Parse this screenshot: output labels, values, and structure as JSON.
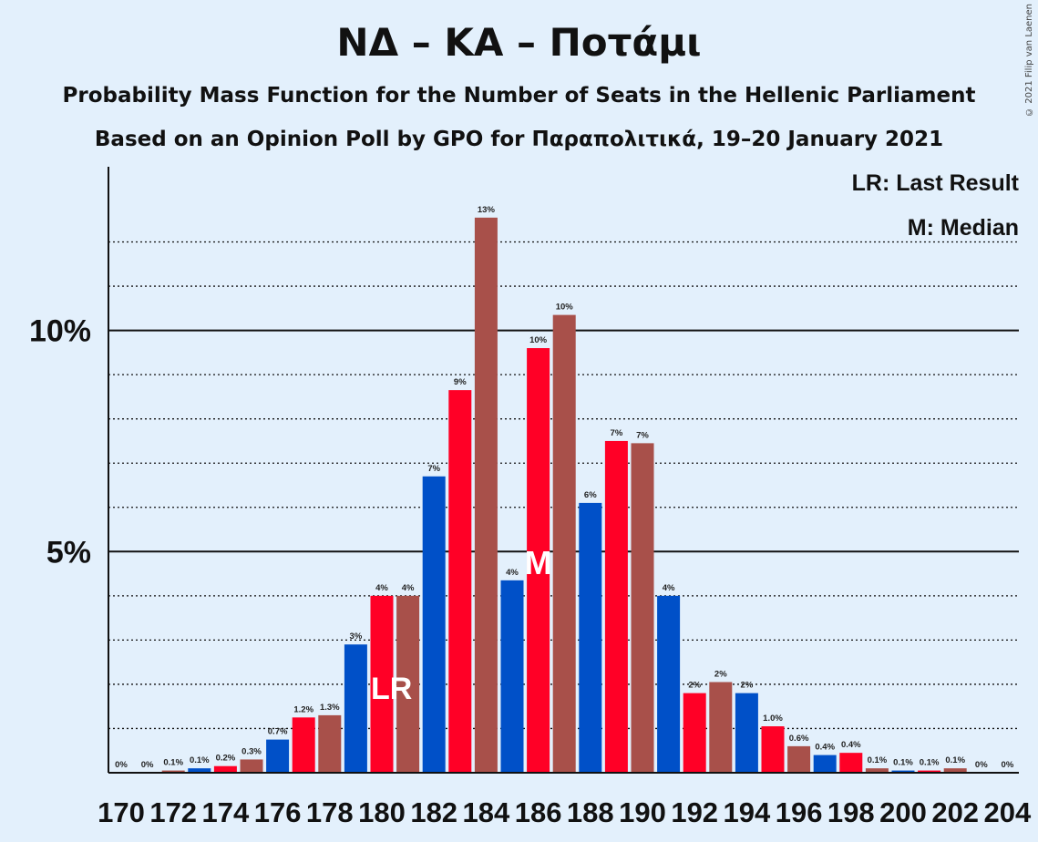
{
  "title": "ΝΔ – ΚΑ – Ποτάμι",
  "subtitle_1": "Probability Mass Function for the Number of Seats in the Hellenic Parliament",
  "subtitle_2": "Based on an Opinion Poll by GPO for Παραπολιτικά, 19–20 January 2021",
  "copyright": "© 2021 Filip van Laenen",
  "legend": {
    "last_result": "LR: Last Result",
    "median": "M: Median"
  },
  "colors": {
    "blue": "#0050c8",
    "red": "#ff0026",
    "brown": "#a8504a",
    "background": "#e3f0fc"
  },
  "chart_data": {
    "type": "bar",
    "x": [
      170,
      171,
      172,
      173,
      174,
      175,
      176,
      177,
      178,
      179,
      180,
      181,
      182,
      183,
      184,
      185,
      186,
      187,
      188,
      189,
      190,
      191,
      192,
      193,
      194,
      195,
      196,
      197,
      198,
      199,
      200,
      201,
      202,
      203,
      204
    ],
    "values": [
      0,
      0,
      0.05,
      0.1,
      0.15,
      0.3,
      0.75,
      1.25,
      1.3,
      2.9,
      4.0,
      4.0,
      6.7,
      8.65,
      12.55,
      4.35,
      9.6,
      10.35,
      6.1,
      7.5,
      7.45,
      4.0,
      1.8,
      2.05,
      1.8,
      1.05,
      0.6,
      0.4,
      0.45,
      0.1,
      0.05,
      0.05,
      0.1,
      0,
      0
    ],
    "labels": [
      "0%",
      "0%",
      "0.1%",
      "0.1%",
      "0.2%",
      "0.3%",
      "0.7%",
      "1.2%",
      "1.3%",
      "3%",
      "4%",
      "4%",
      "7%",
      "9%",
      "13%",
      "4%",
      "10%",
      "10%",
      "6%",
      "7%",
      "7%",
      "4%",
      "2%",
      "2%",
      "2%",
      "1.0%",
      "0.6%",
      "0.4%",
      "0.4%",
      "0.1%",
      "0.1%",
      "0.1%",
      "0.1%",
      "0%",
      "0%"
    ],
    "colors": [
      "blue",
      "red",
      "brown",
      "blue",
      "red",
      "brown",
      "blue",
      "red",
      "brown",
      "blue",
      "red",
      "brown",
      "blue",
      "red",
      "brown",
      "blue",
      "red",
      "brown",
      "blue",
      "red",
      "brown",
      "blue",
      "red",
      "brown",
      "blue",
      "red",
      "brown",
      "blue",
      "red",
      "brown",
      "blue",
      "red",
      "brown",
      "blue",
      "red"
    ],
    "x_tick_labels": [
      "170",
      "172",
      "174",
      "176",
      "178",
      "180",
      "182",
      "184",
      "186",
      "188",
      "190",
      "192",
      "194",
      "196",
      "198",
      "200",
      "202",
      "204"
    ],
    "y_tick_labels": [
      "5%",
      "10%"
    ],
    "y_ticks": [
      5,
      10
    ],
    "y_minor_gridlines": [
      1,
      2,
      3,
      4,
      6,
      7,
      8,
      9,
      11,
      12
    ],
    "ylim": [
      0,
      13.7
    ],
    "last_result_seat": 180,
    "last_result_marker": "LR",
    "median_seat": 186,
    "median_marker": "M",
    "legend_position": "top-right"
  }
}
